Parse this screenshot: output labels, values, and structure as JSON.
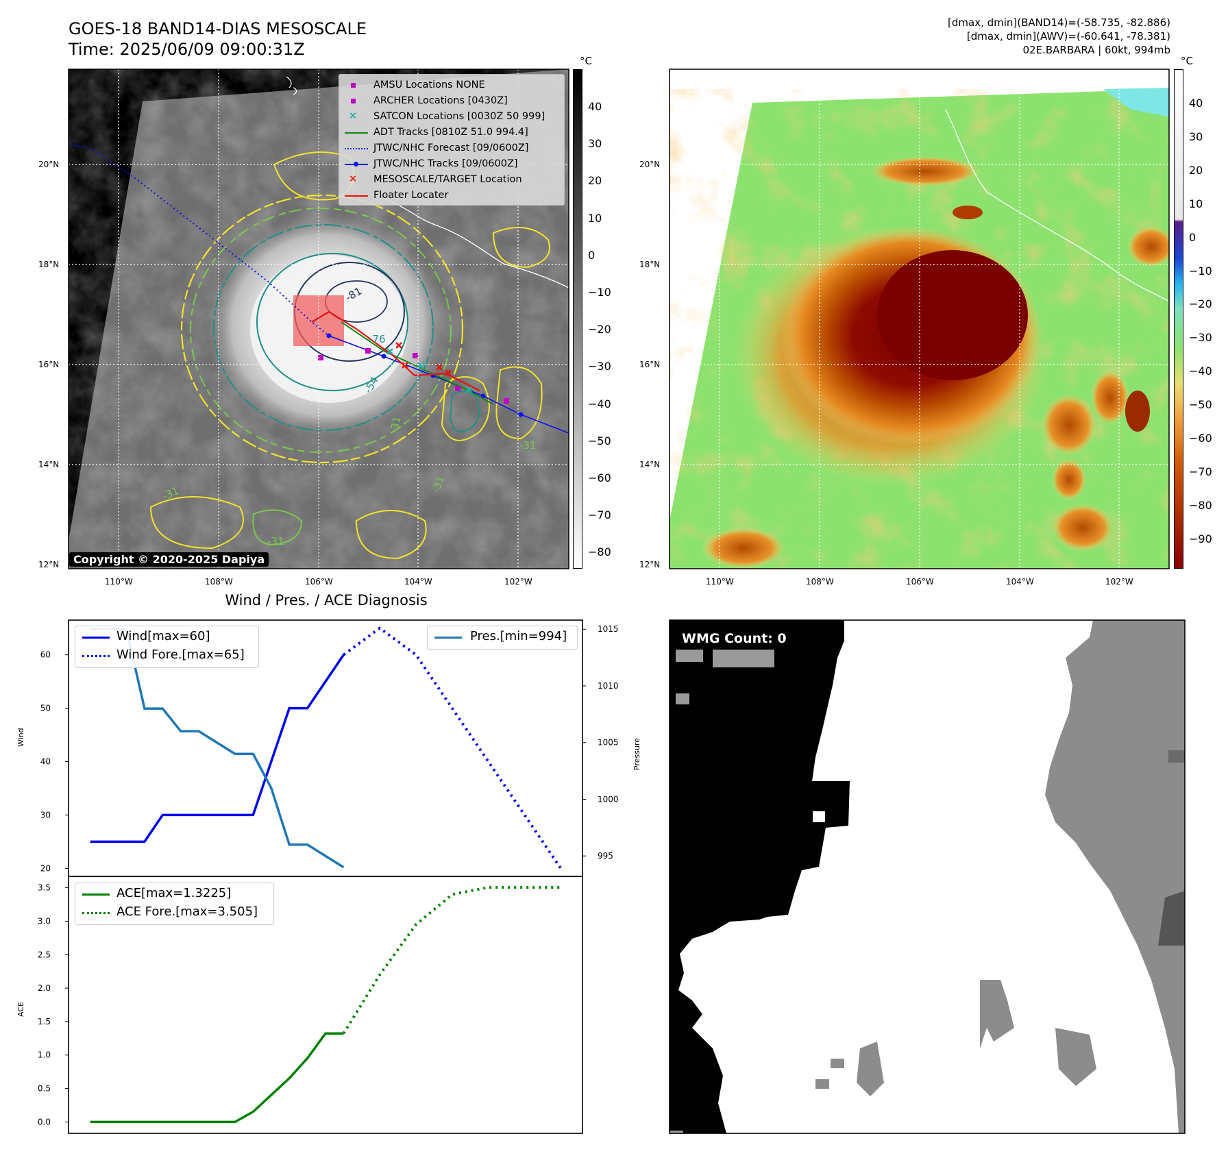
{
  "header": {
    "title_line1": "GOES-18 BAND14-DIAS MESOSCALE",
    "title_line2": "Time: 2025/06/09 09:00:31Z",
    "info_line1": "[dmax, dmin](BAND14)=(-58.735, -82.886)",
    "info_line2": "[dmax, dmin](AWV)=(-60.641, -78.381)",
    "info_line3": "02E.BARBARA | 60kt, 994mb"
  },
  "maps": {
    "lat_labels": [
      "20°N",
      "18°N",
      "16°N",
      "14°N",
      "12°N"
    ],
    "lon_labels": [
      "110°W",
      "108°W",
      "106°W",
      "104°W",
      "102°W"
    ],
    "copyright": "Copyright © 2020-2025 Dapiya",
    "contour_label": "-31",
    "contour_labels_inner": [
      "-81",
      "-76",
      "-54"
    ],
    "colorbar_unit": "°C",
    "colorbar1_ticks": [
      "40",
      "30",
      "20",
      "10",
      "0",
      "−10",
      "−20",
      "−30",
      "−40",
      "−50",
      "−60",
      "−70",
      "−80"
    ],
    "colorbar2_ticks": [
      "40",
      "30",
      "20",
      "10",
      "0",
      "−10",
      "−20",
      "−30",
      "−40",
      "−50",
      "−60",
      "−70",
      "−80",
      "−90"
    ],
    "colors": {
      "coast": "#ffffff",
      "yellow_contour": "#f2e22b",
      "green_contour": "#7ac74f",
      "teal_contour": "#1f8f8a",
      "navy_contour": "#23345e"
    },
    "legend": [
      {
        "label": "AMSU Locations NONE",
        "marker": "square",
        "color": "#c000c0"
      },
      {
        "label": "ARCHER Locations [0430Z]",
        "marker": "square",
        "color": "#c000c0"
      },
      {
        "label": "SATCON Locations [0030Z 50 999]",
        "marker": "x",
        "color": "#17b3a8"
      },
      {
        "label": "ADT Tracks [0810Z 51.0 994.4]",
        "marker": "line",
        "color": "#138a13"
      },
      {
        "label": "JTWC/NHC Forecast [09/0600Z]",
        "marker": "dotted",
        "color": "#1010ee"
      },
      {
        "label": "JTWC/NHC Tracks [09/0600Z]",
        "marker": "line-dot",
        "color": "#1010ee"
      },
      {
        "label": "MESOSCALE/TARGET Location",
        "marker": "x",
        "color": "#ee1010"
      },
      {
        "label": "Floater Locater",
        "marker": "line",
        "color": "#ee1010"
      }
    ]
  },
  "diagnosis": {
    "title": "Wind / Pres. / ACE Diagnosis",
    "wind_ylabel": "Wind",
    "pres_ylabel": "Pressure",
    "ace_ylabel": "ACE",
    "legend_wind": "Wind[max=60]",
    "legend_wind_fore": "Wind Fore.[max=65]",
    "legend_pres": "Pres.[min=994]",
    "legend_ace": "ACE[max=1.3225]",
    "legend_ace_fore": "ACE Fore.[max=3.505]",
    "wmg_label": "WMG Count: 0"
  },
  "chart_data": [
    {
      "type": "line",
      "name": "wind",
      "series": [
        {
          "name": "Wind[max=60]",
          "color": "#0000ee",
          "style": "solid",
          "x": [
            0,
            1,
            2,
            3,
            4,
            5,
            6,
            7,
            8,
            9,
            10,
            11,
            12,
            13,
            14
          ],
          "values": [
            25,
            25,
            25,
            25,
            30,
            30,
            30,
            30,
            30,
            30,
            40,
            50,
            50,
            55,
            60
          ]
        },
        {
          "name": "Wind Fore.[max=65]",
          "color": "#0000ee",
          "style": "dotted",
          "x": [
            14,
            16,
            18,
            20,
            22,
            24,
            26
          ],
          "values": [
            60,
            65,
            60,
            50,
            40,
            30,
            20
          ]
        }
      ],
      "ylim": [
        18.5,
        66.5
      ],
      "yticks": [
        20,
        30,
        40,
        50,
        60
      ],
      "xlim": [
        -1.2,
        27.2
      ]
    },
    {
      "type": "line",
      "name": "pressure",
      "series": [
        {
          "name": "Pres.[min=994]",
          "color": "#1f77b4",
          "style": "solid",
          "x": [
            0,
            1,
            2,
            3,
            4,
            5,
            6,
            7,
            8,
            9,
            10,
            11,
            12,
            13,
            14
          ],
          "values": [
            1015,
            1015,
            1015,
            1008,
            1008,
            1006,
            1006,
            1005,
            1004,
            1004,
            1001,
            996,
            996,
            995,
            994
          ]
        }
      ],
      "ylim": [
        993.2,
        1015.8
      ],
      "yticks": [
        995,
        1000,
        1005,
        1010,
        1015
      ]
    },
    {
      "type": "line",
      "name": "ace",
      "series": [
        {
          "name": "ACE[max=1.3225]",
          "color": "#008000",
          "style": "solid",
          "x": [
            0,
            2,
            4,
            6,
            8,
            9,
            10,
            11,
            12,
            13,
            14
          ],
          "values": [
            0,
            0,
            0,
            0,
            0,
            0.1525,
            0.4025,
            0.6525,
            0.9525,
            1.3225,
            1.3225
          ]
        },
        {
          "name": "ACE Fore.[max=3.505]",
          "color": "#008000",
          "style": "dotted",
          "x": [
            14,
            16,
            18,
            20,
            22,
            24,
            26
          ],
          "values": [
            1.3225,
            2.2,
            2.95,
            3.4,
            3.505,
            3.505,
            3.505
          ]
        }
      ],
      "ylim": [
        -0.17,
        3.67
      ],
      "yticks": [
        0.0,
        0.5,
        1.0,
        1.5,
        2.0,
        2.5,
        3.0,
        3.5
      ],
      "ytick_labels": [
        "0.0",
        "0.5",
        "1.0",
        "1.5",
        "2.0",
        "2.5",
        "3.0",
        "3.5"
      ]
    }
  ]
}
